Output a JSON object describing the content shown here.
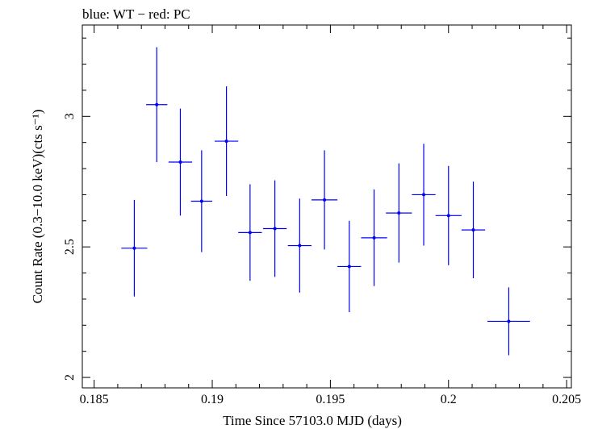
{
  "chart_data": {
    "type": "scatter",
    "title": "blue: WT − red: PC",
    "xlabel": "Time Since 57103.0 MJD (days)",
    "ylabel": "Count Rate (0.3−10.0 keV)(cts s⁻¹)",
    "xlim": [
      0.1845,
      0.2052
    ],
    "ylim": [
      1.96,
      3.35
    ],
    "x_ticks": [
      0.185,
      0.19,
      0.195,
      0.2,
      0.205
    ],
    "x_tick_labels": [
      "0.185",
      "0.19",
      "0.195",
      "0.2",
      "0.205"
    ],
    "y_ticks": [
      2,
      2.5,
      3
    ],
    "y_tick_labels": [
      "2",
      "2.5",
      "3"
    ],
    "grid": false,
    "series": [
      {
        "color": "#0000ff",
        "points": [
          {
            "x": 0.1867,
            "y": 2.495,
            "xerr": 0.00055,
            "yerr": 0.185
          },
          {
            "x": 0.18765,
            "y": 3.045,
            "xerr": 0.00045,
            "yerr": 0.22
          },
          {
            "x": 0.18865,
            "y": 2.825,
            "xerr": 0.0005,
            "yerr": 0.205
          },
          {
            "x": 0.18955,
            "y": 2.675,
            "xerr": 0.00045,
            "yerr": 0.195
          },
          {
            "x": 0.1906,
            "y": 2.905,
            "xerr": 0.0005,
            "yerr": 0.21
          },
          {
            "x": 0.1916,
            "y": 2.555,
            "xerr": 0.0005,
            "yerr": 0.185
          },
          {
            "x": 0.19265,
            "y": 2.57,
            "xerr": 0.0005,
            "yerr": 0.185
          },
          {
            "x": 0.1937,
            "y": 2.505,
            "xerr": 0.0005,
            "yerr": 0.18
          },
          {
            "x": 0.19475,
            "y": 2.68,
            "xerr": 0.00055,
            "yerr": 0.19
          },
          {
            "x": 0.1958,
            "y": 2.425,
            "xerr": 0.0005,
            "yerr": 0.175
          },
          {
            "x": 0.19685,
            "y": 2.535,
            "xerr": 0.00055,
            "yerr": 0.185
          },
          {
            "x": 0.1979,
            "y": 2.63,
            "xerr": 0.00055,
            "yerr": 0.19
          },
          {
            "x": 0.19895,
            "y": 2.7,
            "xerr": 0.0005,
            "yerr": 0.195
          },
          {
            "x": 0.2,
            "y": 2.62,
            "xerr": 0.00055,
            "yerr": 0.19
          },
          {
            "x": 0.20105,
            "y": 2.565,
            "xerr": 0.0005,
            "yerr": 0.185
          },
          {
            "x": 0.20255,
            "y": 2.215,
            "xerr": 0.0009,
            "yerr": 0.13
          }
        ]
      }
    ]
  }
}
